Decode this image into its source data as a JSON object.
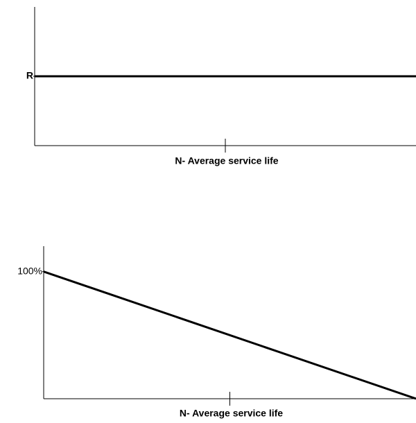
{
  "chart_data": [
    {
      "type": "line",
      "xlabel": "N- Average service life",
      "x": [
        0,
        2
      ],
      "xlim": [
        0,
        2
      ],
      "xticks": [
        {
          "value": 1,
          "label": null
        }
      ],
      "ylim": [
        0,
        2
      ],
      "yticks": [
        {
          "value": 1,
          "label": "R"
        }
      ],
      "series": [
        {
          "color": "#000000",
          "values": [
            1,
            1
          ]
        }
      ]
    },
    {
      "type": "line",
      "xlabel": "N- Average service life",
      "x": [
        0,
        2
      ],
      "xlim": [
        0,
        2
      ],
      "xticks": [
        {
          "value": 1,
          "label": null
        }
      ],
      "ylim": [
        0,
        120
      ],
      "yticks": [
        {
          "value": 100,
          "label": "100%"
        }
      ],
      "series": [
        {
          "color": "#000000",
          "values": [
            100,
            0
          ]
        }
      ]
    }
  ]
}
